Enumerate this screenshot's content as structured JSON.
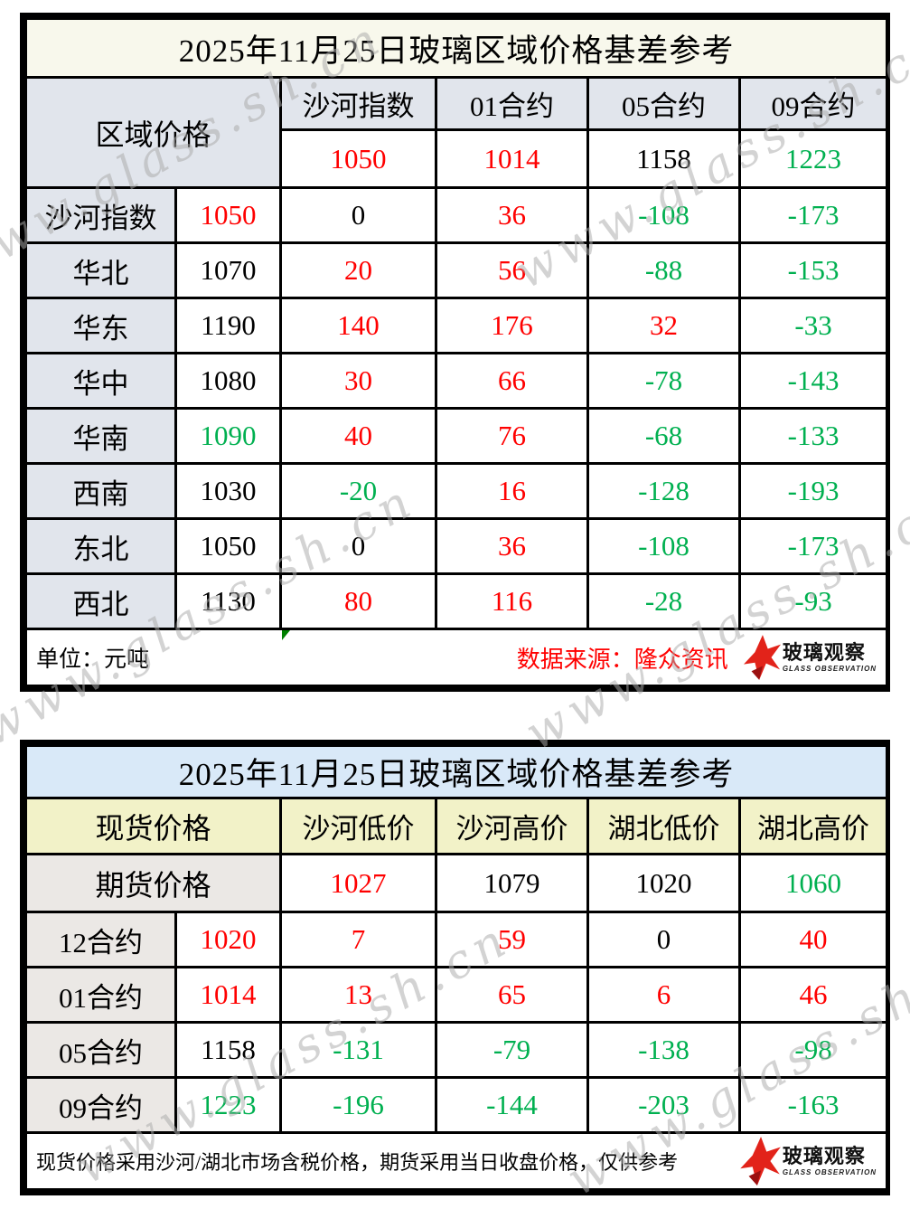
{
  "watermark": {
    "text": "www.glass.sh.cn"
  },
  "colors": {
    "red": "#ff0000",
    "green": "#00b050",
    "black": "#000000"
  },
  "logo": {
    "name": "玻璃观察",
    "subtitle": "GLASS OBSERVATION"
  },
  "table1": {
    "title": "2025年11月25日玻璃区域价格基差参考",
    "corner_label": "区域价格",
    "col_headers": [
      "沙河指数",
      "01合约",
      "05合约",
      "09合约"
    ],
    "futures_prices": [
      {
        "v": "1050",
        "c": "red"
      },
      {
        "v": "1014",
        "c": "red"
      },
      {
        "v": "1158",
        "c": "black"
      },
      {
        "v": "1223",
        "c": "green"
      }
    ],
    "rows": [
      {
        "label": "沙河指数",
        "price": {
          "v": "1050",
          "c": "red"
        },
        "cells": [
          {
            "v": "0",
            "c": "black"
          },
          {
            "v": "36",
            "c": "red"
          },
          {
            "v": "-108",
            "c": "green"
          },
          {
            "v": "-173",
            "c": "green"
          }
        ]
      },
      {
        "label": "华北",
        "price": {
          "v": "1070",
          "c": "black"
        },
        "cells": [
          {
            "v": "20",
            "c": "red"
          },
          {
            "v": "56",
            "c": "red"
          },
          {
            "v": "-88",
            "c": "green"
          },
          {
            "v": "-153",
            "c": "green"
          }
        ]
      },
      {
        "label": "华东",
        "price": {
          "v": "1190",
          "c": "black"
        },
        "cells": [
          {
            "v": "140",
            "c": "red"
          },
          {
            "v": "176",
            "c": "red"
          },
          {
            "v": "32",
            "c": "red"
          },
          {
            "v": "-33",
            "c": "green"
          }
        ]
      },
      {
        "label": "华中",
        "price": {
          "v": "1080",
          "c": "black"
        },
        "cells": [
          {
            "v": "30",
            "c": "red"
          },
          {
            "v": "66",
            "c": "red"
          },
          {
            "v": "-78",
            "c": "green"
          },
          {
            "v": "-143",
            "c": "green"
          }
        ]
      },
      {
        "label": "华南",
        "price": {
          "v": "1090",
          "c": "green"
        },
        "cells": [
          {
            "v": "40",
            "c": "red"
          },
          {
            "v": "76",
            "c": "red"
          },
          {
            "v": "-68",
            "c": "green"
          },
          {
            "v": "-133",
            "c": "green"
          }
        ]
      },
      {
        "label": "西南",
        "price": {
          "v": "1030",
          "c": "black"
        },
        "cells": [
          {
            "v": "-20",
            "c": "green"
          },
          {
            "v": "16",
            "c": "red"
          },
          {
            "v": "-128",
            "c": "green"
          },
          {
            "v": "-193",
            "c": "green"
          }
        ]
      },
      {
        "label": "东北",
        "price": {
          "v": "1050",
          "c": "black"
        },
        "cells": [
          {
            "v": "0",
            "c": "black"
          },
          {
            "v": "36",
            "c": "red"
          },
          {
            "v": "-108",
            "c": "green"
          },
          {
            "v": "-173",
            "c": "green"
          }
        ]
      },
      {
        "label": "西北",
        "price": {
          "v": "1130",
          "c": "black"
        },
        "cells": [
          {
            "v": "80",
            "c": "red"
          },
          {
            "v": "116",
            "c": "red"
          },
          {
            "v": "-28",
            "c": "green"
          },
          {
            "v": "-93",
            "c": "green"
          }
        ]
      }
    ],
    "footer_left": "单位：元吨",
    "footer_right": "数据来源：隆众资讯"
  },
  "table2": {
    "title": "2025年11月25日玻璃区域价格基差参考",
    "corner_label": "现货价格",
    "col_headers": [
      "沙河低价",
      "沙河高价",
      "湖北低价",
      "湖北高价"
    ],
    "spot_label": "期货价格",
    "spot_prices": [
      {
        "v": "1027",
        "c": "red"
      },
      {
        "v": "1079",
        "c": "black"
      },
      {
        "v": "1020",
        "c": "black"
      },
      {
        "v": "1060",
        "c": "green"
      }
    ],
    "rows": [
      {
        "label": "12合约",
        "price": {
          "v": "1020",
          "c": "red"
        },
        "cells": [
          {
            "v": "7",
            "c": "red"
          },
          {
            "v": "59",
            "c": "red"
          },
          {
            "v": "0",
            "c": "black"
          },
          {
            "v": "40",
            "c": "red"
          }
        ]
      },
      {
        "label": "01合约",
        "price": {
          "v": "1014",
          "c": "red"
        },
        "cells": [
          {
            "v": "13",
            "c": "red"
          },
          {
            "v": "65",
            "c": "red"
          },
          {
            "v": "6",
            "c": "red"
          },
          {
            "v": "46",
            "c": "red"
          }
        ]
      },
      {
        "label": "05合约",
        "price": {
          "v": "1158",
          "c": "black"
        },
        "cells": [
          {
            "v": "-131",
            "c": "green"
          },
          {
            "v": "-79",
            "c": "green"
          },
          {
            "v": "-138",
            "c": "green"
          },
          {
            "v": "-98",
            "c": "green"
          }
        ]
      },
      {
        "label": "09合约",
        "price": {
          "v": "1223",
          "c": "green"
        },
        "cells": [
          {
            "v": "-196",
            "c": "green"
          },
          {
            "v": "-144",
            "c": "green"
          },
          {
            "v": "-203",
            "c": "green"
          },
          {
            "v": "-163",
            "c": "green"
          }
        ]
      }
    ],
    "footer_text": "现货价格采用沙河/湖北市场含税价格，期货采用当日收盘价格，仅供参考"
  }
}
